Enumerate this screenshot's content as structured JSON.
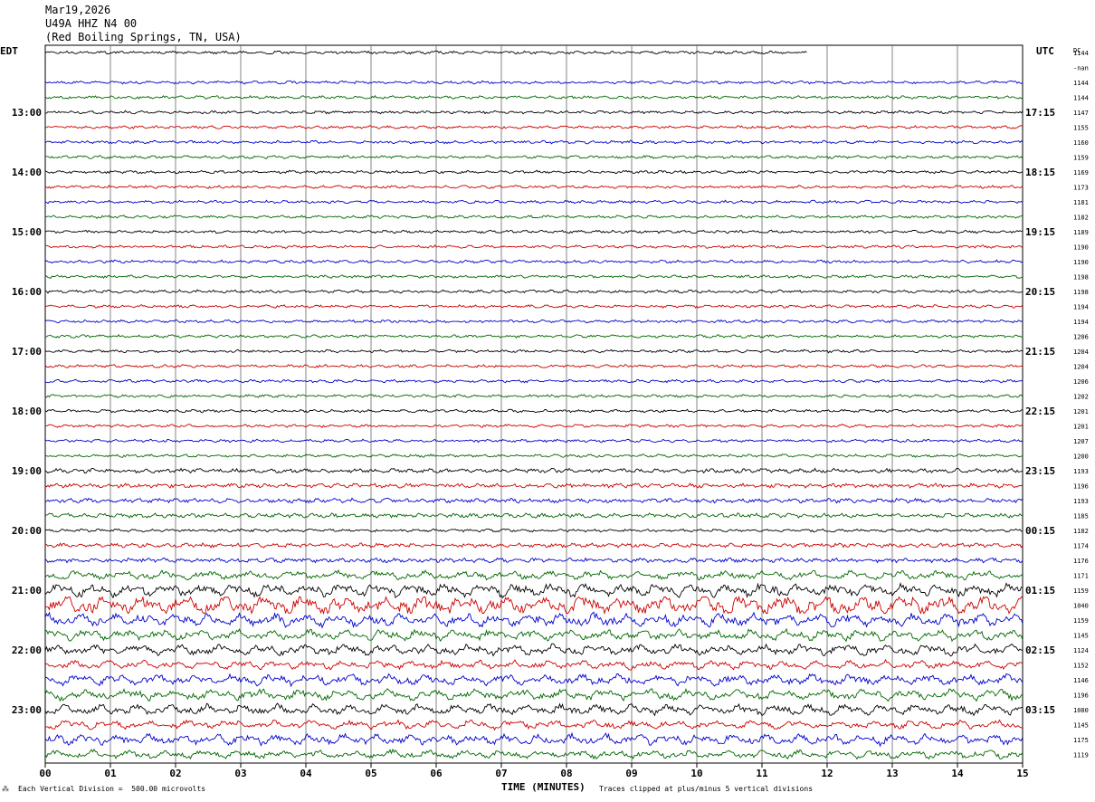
{
  "header": {
    "date": "Mar19,2026",
    "station": "U49A HHZ N4 00",
    "location": "(Red Boiling Springs, TN, USA)"
  },
  "chart_data": {
    "type": "line",
    "title": "U49A HHZ N4 00",
    "left_axis_label": "EDT",
    "right_axis_label": "UTC",
    "dc_label": "DC",
    "xlabel": "TIME (MINUTES)",
    "x_ticks": [
      "00",
      "01",
      "02",
      "03",
      "04",
      "05",
      "06",
      "07",
      "08",
      "09",
      "10",
      "11",
      "12",
      "13",
      "14",
      "15"
    ],
    "xlim": [
      0,
      15
    ],
    "rows_per_hour": 4,
    "line_colors": [
      "#000000",
      "#cc0000",
      "#0000cc",
      "#006600"
    ],
    "left_hour_labels": [
      {
        "row": 4,
        "label": "13:00"
      },
      {
        "row": 8,
        "label": "14:00"
      },
      {
        "row": 12,
        "label": "15:00"
      },
      {
        "row": 16,
        "label": "16:00"
      },
      {
        "row": 20,
        "label": "17:00"
      },
      {
        "row": 24,
        "label": "18:00"
      },
      {
        "row": 28,
        "label": "19:00"
      },
      {
        "row": 32,
        "label": "20:00"
      },
      {
        "row": 36,
        "label": "21:00"
      },
      {
        "row": 40,
        "label": "22:00"
      },
      {
        "row": 44,
        "label": "23:00"
      }
    ],
    "right_hour_labels": [
      {
        "row": 4,
        "label": "17:15"
      },
      {
        "row": 8,
        "label": "18:15"
      },
      {
        "row": 12,
        "label": "19:15"
      },
      {
        "row": 16,
        "label": "20:15"
      },
      {
        "row": 20,
        "label": "21:15"
      },
      {
        "row": 24,
        "label": "22:15"
      },
      {
        "row": 28,
        "label": "23:15"
      },
      {
        "row": 32,
        "label": "00:15"
      },
      {
        "row": 36,
        "label": "01:15"
      },
      {
        "row": 40,
        "label": "02:15"
      },
      {
        "row": 44,
        "label": "03:15"
      }
    ],
    "dc_values": [
      "1144",
      "-nan",
      "1144",
      "1144",
      "1147",
      "1155",
      "1160",
      "1159",
      "1169",
      "1173",
      "1181",
      "1182",
      "1189",
      "1190",
      "1190",
      "1198",
      "1198",
      "1194",
      "1194",
      "1206",
      "1204",
      "1204",
      "1206",
      "1202",
      "1201",
      "1201",
      "1207",
      "1200",
      "1193",
      "1196",
      "1193",
      "1185",
      "1182",
      "1174",
      "1176",
      "1171",
      "1159",
      "1040",
      "1159",
      "1145",
      "1124",
      "1152",
      "1146",
      "1196",
      "1080",
      "1145",
      "1175",
      "1119"
    ],
    "trace_amplitude": [
      2,
      0,
      2,
      2,
      2,
      2,
      2,
      2,
      2,
      2,
      2,
      2,
      2,
      2,
      2,
      2,
      2,
      2,
      2,
      2,
      2,
      2,
      2,
      2,
      2,
      2,
      2,
      2,
      3,
      3,
      3,
      3,
      2,
      3,
      3,
      4,
      6,
      9,
      6,
      5,
      5,
      4,
      5,
      5,
      5,
      4,
      5,
      4
    ],
    "first_row_end_minute": 11.7,
    "notes": {
      "vertical_division": "Each Vertical Division =  500.00 microvolts",
      "clipping": "Traces clipped at plus/minus 5 vertical divisions"
    }
  }
}
